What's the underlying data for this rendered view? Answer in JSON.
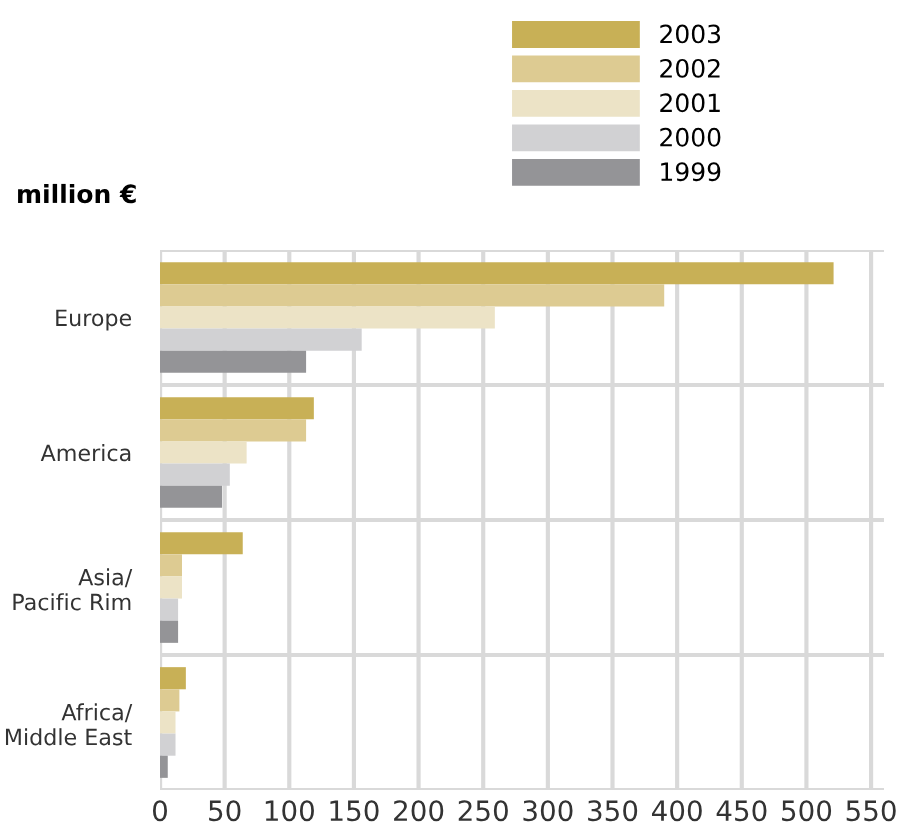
{
  "chart_data": {
    "type": "bar",
    "orientation": "horizontal",
    "ylabel": "million €",
    "categories": [
      "Europe",
      "America",
      "Asia/\nPacific Rim",
      "Africa/\nMiddle East"
    ],
    "series": [
      {
        "name": "2003",
        "color": "#c8b056",
        "values": [
          521,
          119,
          64,
          20
        ]
      },
      {
        "name": "2002",
        "color": "#ddcb92",
        "values": [
          390,
          113,
          17,
          15
        ]
      },
      {
        "name": "2001",
        "color": "#ece3c6",
        "values": [
          259,
          67,
          17,
          12
        ]
      },
      {
        "name": "2000",
        "color": "#d1d1d3",
        "values": [
          156,
          54,
          14,
          12
        ]
      },
      {
        "name": "1999",
        "color": "#949497",
        "values": [
          113,
          48,
          14,
          6
        ]
      }
    ],
    "xlim": [
      0,
      560
    ],
    "xticks": [
      0,
      50,
      100,
      150,
      200,
      250,
      300,
      350,
      400,
      450,
      500,
      550
    ],
    "grid": "x",
    "legend": "top right"
  }
}
